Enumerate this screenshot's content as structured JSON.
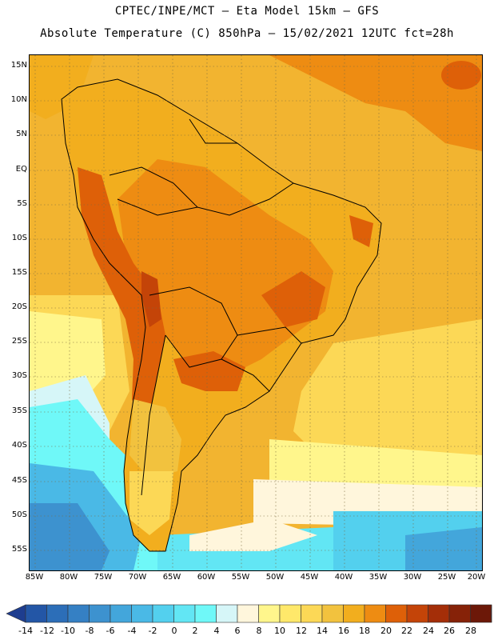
{
  "header": {
    "line1": "CPTEC/INPE/MCT –  Eta Model 15km – GFS",
    "line2": "Absolute Temperature (C) 850hPa – 15/02/2021 12UTC fct=28h"
  },
  "map": {
    "lat_ticks": [
      "15N",
      "10N",
      "5N",
      "EQ",
      "5S",
      "10S",
      "15S",
      "20S",
      "25S",
      "30S",
      "35S",
      "40S",
      "45S",
      "50S",
      "55S"
    ],
    "lon_ticks": [
      "85W",
      "80W",
      "75W",
      "70W",
      "65W",
      "60W",
      "55W",
      "50W",
      "45W",
      "40W",
      "35W",
      "30W",
      "25W",
      "20W"
    ],
    "grid": "dotted"
  },
  "colorbar": {
    "labels": [
      "-14",
      "-12",
      "-10",
      "-8",
      "-6",
      "-4",
      "-2",
      "0",
      "2",
      "4",
      "6",
      "8",
      "10",
      "12",
      "14",
      "16",
      "18",
      "20",
      "22",
      "24",
      "26",
      "28"
    ],
    "colors": [
      "#1e3d8f",
      "#2356a6",
      "#2c6eb8",
      "#3580c4",
      "#3d92cf",
      "#43a6db",
      "#4ab9e6",
      "#53d0ee",
      "#62e6f4",
      "#6ff8f8",
      "#d6f6f8",
      "#fff6dc",
      "#fff68c",
      "#ffe86a",
      "#fcd856",
      "#f2c23e",
      "#f2ae1e",
      "#ee8c12",
      "#de6008",
      "#c44408",
      "#a42e08",
      "#862208",
      "#6c1808",
      "#7a0a1a"
    ]
  }
}
